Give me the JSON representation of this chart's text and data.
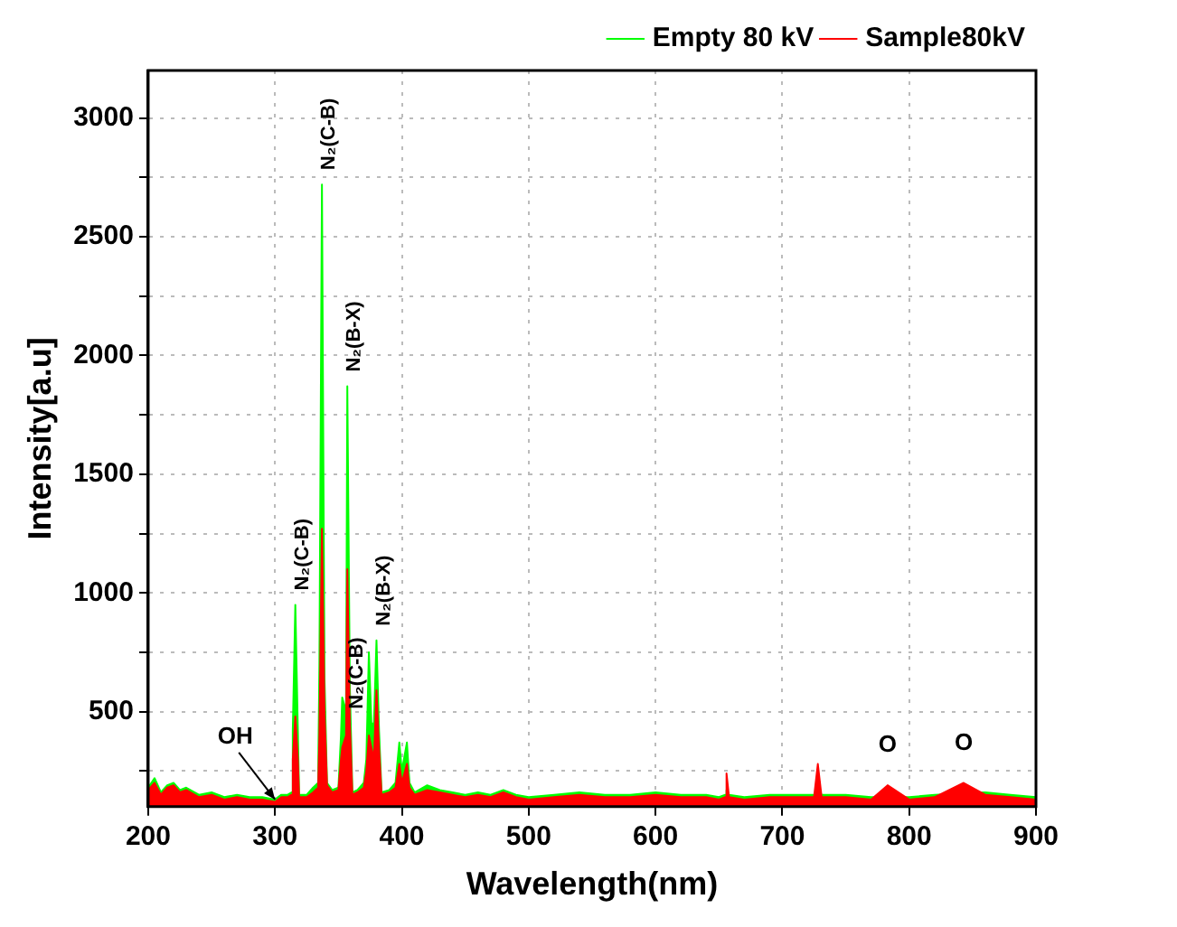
{
  "chart_data": {
    "type": "area",
    "xlabel": "Wavelength(nm)",
    "ylabel": "Intensity[a.u]",
    "x": [
      200,
      205,
      210,
      215,
      220,
      225,
      230,
      240,
      250,
      260,
      270,
      280,
      290,
      300,
      305,
      310,
      313,
      314,
      316,
      318,
      319,
      325,
      330,
      334,
      335,
      337,
      339,
      341,
      345,
      350,
      352,
      353,
      355,
      356,
      357,
      359,
      361,
      365,
      370,
      372,
      374,
      376,
      378,
      380,
      382,
      384,
      390,
      395,
      398,
      400,
      404,
      406,
      410,
      420,
      430,
      440,
      450,
      460,
      470,
      480,
      490,
      500,
      520,
      540,
      560,
      580,
      600,
      620,
      640,
      650,
      655,
      656,
      658,
      670,
      690,
      710,
      725,
      728,
      731,
      750,
      770,
      783,
      800,
      820,
      843,
      860,
      880,
      900
    ],
    "series": [
      {
        "name": "Empty 80 kV",
        "color": "#00ff00",
        "values": [
          180,
          220,
          160,
          190,
          200,
          170,
          180,
          150,
          160,
          140,
          150,
          140,
          140,
          130,
          150,
          150,
          160,
          420,
          950,
          420,
          150,
          150,
          180,
          200,
          700,
          2720,
          640,
          200,
          170,
          180,
          400,
          560,
          null,
          500,
          1870,
          600,
          160,
          170,
          200,
          300,
          750,
          450,
          450,
          800,
          420,
          160,
          170,
          200,
          370,
          250,
          370,
          200,
          160,
          190,
          170,
          160,
          150,
          160,
          150,
          170,
          150,
          140,
          150,
          160,
          150,
          150,
          160,
          150,
          150,
          140,
          150,
          170,
          150,
          140,
          150,
          150,
          150,
          170,
          150,
          150,
          140,
          null,
          140,
          150,
          null,
          160,
          150,
          140
        ]
      },
      {
        "name": "Sample80kV",
        "color": "#ff0000",
        "values": [
          170,
          200,
          150,
          180,
          190,
          160,
          170,
          140,
          150,
          130,
          140,
          130,
          130,
          120,
          140,
          140,
          150,
          300,
          480,
          300,
          140,
          140,
          160,
          180,
          400,
          1270,
          500,
          190,
          160,
          170,
          300,
          350,
          null,
          400,
          1100,
          450,
          150,
          160,
          180,
          250,
          400,
          350,
          300,
          590,
          350,
          150,
          160,
          180,
          280,
          200,
          280,
          180,
          150,
          170,
          160,
          150,
          140,
          150,
          140,
          160,
          140,
          130,
          140,
          150,
          140,
          140,
          150,
          140,
          140,
          130,
          140,
          240,
          140,
          130,
          140,
          140,
          140,
          280,
          140,
          140,
          130,
          190,
          130,
          140,
          200,
          150,
          140,
          130
        ]
      }
    ],
    "xlim": [
      200,
      900
    ],
    "xticks": [
      200,
      300,
      400,
      500,
      600,
      700,
      800,
      900
    ],
    "ylim": [
      100,
      3200
    ],
    "yticks": [
      {
        "value": 250,
        "label": null
      },
      500,
      {
        "value": 750,
        "label": null
      },
      1000,
      {
        "value": 1250,
        "label": null
      },
      1500,
      {
        "value": 1750,
        "label": null
      },
      2000,
      {
        "value": 2250,
        "label": null
      },
      2500,
      {
        "value": 2750,
        "label": null
      },
      3000
    ],
    "grid": true,
    "legend": "top right",
    "annotations": [
      {
        "text": "OH",
        "x": 300,
        "y": 130
      },
      {
        "text": "N₂(C-B)",
        "x": 316,
        "y": 950
      },
      {
        "text": "N₂(C-B)",
        "x": 337,
        "y": 2720
      },
      {
        "text": "N₂(B-X)",
        "x": 357,
        "y": 1870
      },
      {
        "text": "N₂(C-B)",
        "x": 376,
        "y": 450
      },
      {
        "text": "N₂(B-X)",
        "x": 380,
        "y": 800
      },
      {
        "text": "O",
        "x": 783,
        "y": 190
      },
      {
        "text": "O",
        "x": 843,
        "y": 200
      }
    ]
  }
}
